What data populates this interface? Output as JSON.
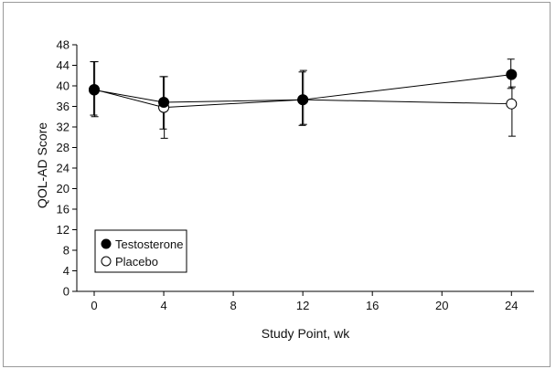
{
  "chart_data": {
    "type": "line",
    "title": "",
    "xlabel": "Study Point, wk",
    "ylabel": "QOL-AD Score",
    "x": [
      0,
      4,
      12,
      24
    ],
    "xlim": [
      -1,
      25.3
    ],
    "ylim": [
      0,
      48
    ],
    "xticks": [
      0,
      4,
      8,
      12,
      16,
      20,
      24
    ],
    "yticks": [
      0,
      4,
      8,
      12,
      16,
      20,
      24,
      28,
      32,
      36,
      40,
      44,
      48
    ],
    "grid": false,
    "legend_position": "lower-left",
    "series": [
      {
        "name": "Testosterone",
        "marker": "filled-circle",
        "color": "#000000",
        "values": [
          39.2,
          36.8,
          37.3,
          42.2
        ],
        "err_low": [
          34.3,
          31.6,
          32.3,
          39.5
        ],
        "err_high": [
          44.7,
          41.8,
          42.7,
          45.2
        ]
      },
      {
        "name": "Placebo",
        "marker": "open-circle",
        "color": "#000000",
        "values": [
          39.3,
          35.8,
          37.3,
          36.5
        ],
        "err_low": [
          34.0,
          29.8,
          32.5,
          30.2
        ],
        "err_high": [
          44.7,
          41.8,
          43.0,
          39.8
        ]
      }
    ]
  }
}
